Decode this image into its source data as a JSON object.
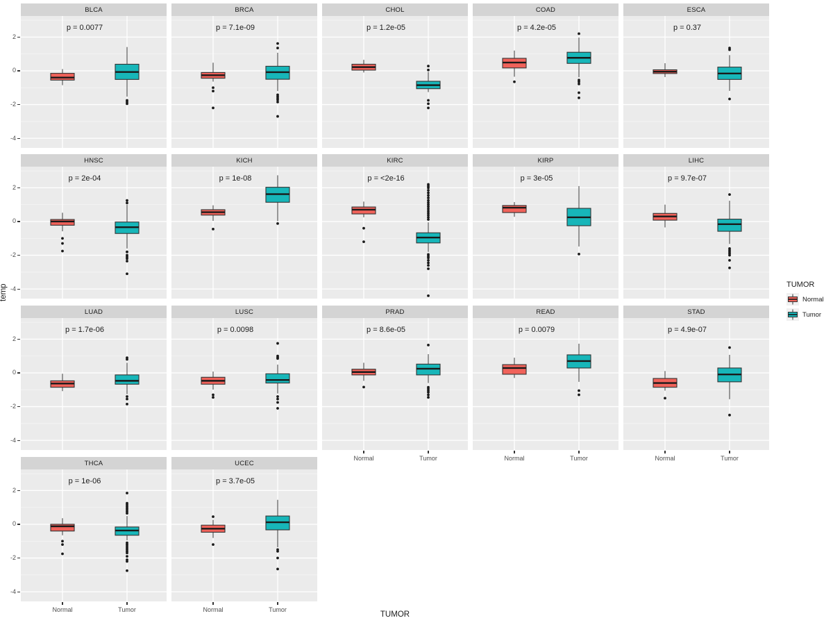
{
  "figure": {
    "panel_bg": "#ebebeb",
    "strip_bg": "#d4d4d4",
    "grid_major_color": "#ffffff",
    "grid_minor_color": "#f5f5f5",
    "box_stroke": "#333333",
    "whisker_color": "#4d4d4d",
    "outlier_color": "#1a1a1a",
    "tick_label_color": "#4d4d4d"
  },
  "legend": {
    "title": "TUMOR",
    "entries": [
      {
        "label": "Normal",
        "color": "#f0625a"
      },
      {
        "label": "Tumor",
        "color": "#17b6b9"
      }
    ]
  },
  "chart_data": {
    "type": "boxplot",
    "title": "",
    "xlabel": "TUMOR",
    "ylabel": "temp",
    "categories": [
      "Normal",
      "Tumor"
    ],
    "y_ticks": [
      2,
      0,
      -2,
      -4
    ],
    "ylim": [
      -4.57,
      3.25
    ],
    "grid": true,
    "legend_position": "right",
    "colors": {
      "Normal": "#f0625a",
      "Tumor": "#17b6b9"
    },
    "facets": [
      {
        "label": "BLCA",
        "p": "p = 0.0077",
        "normal": {
          "whislo": -0.85,
          "q1": -0.55,
          "med": -0.4,
          "q3": -0.15,
          "whishi": 0.1,
          "outliers": []
        },
        "tumor": {
          "whislo": -1.53,
          "q1": -0.51,
          "med": -0.07,
          "q3": 0.39,
          "whishi": 1.41,
          "outliers": [
            -1.75,
            -1.85,
            -1.95
          ]
        }
      },
      {
        "label": "BRCA",
        "p": "p = 7.1e-09",
        "normal": {
          "whislo": -0.64,
          "q1": -0.44,
          "med": -0.26,
          "q3": -0.1,
          "whishi": 0.48,
          "outliers": [
            -1.0,
            -1.2,
            -2.2
          ]
        },
        "tumor": {
          "whislo": -1.2,
          "q1": -0.5,
          "med": -0.08,
          "q3": 0.27,
          "whishi": 1.07,
          "outliers": [
            1.62,
            1.35,
            -1.42,
            -1.52,
            -1.62,
            -1.72,
            -1.85,
            -2.7
          ]
        }
      },
      {
        "label": "CHOL",
        "p": "p = 1.2e-05",
        "normal": {
          "whislo": -0.1,
          "q1": 0.04,
          "med": 0.22,
          "q3": 0.39,
          "whishi": 0.65,
          "outliers": []
        },
        "tumor": {
          "whislo": -1.26,
          "q1": -1.06,
          "med": -0.85,
          "q3": -0.62,
          "whishi": -0.07,
          "outliers": [
            0.28,
            0.05,
            -1.75,
            -1.95,
            -2.2
          ]
        }
      },
      {
        "label": "COAD",
        "p": "p = 4.2e-05",
        "normal": {
          "whislo": -0.35,
          "q1": 0.17,
          "med": 0.49,
          "q3": 0.74,
          "whishi": 1.2,
          "outliers": [
            -0.65
          ]
        },
        "tumor": {
          "whislo": -0.38,
          "q1": 0.44,
          "med": 0.77,
          "q3": 1.1,
          "whishi": 1.97,
          "outliers": [
            2.2,
            -0.55,
            -0.65,
            -0.78,
            -1.3,
            -1.6
          ]
        }
      },
      {
        "label": "ESCA",
        "p": "p = 0.37",
        "normal": {
          "whislo": -0.37,
          "q1": -0.16,
          "med": -0.05,
          "q3": 0.06,
          "whishi": 0.45,
          "outliers": []
        },
        "tumor": {
          "whislo": -1.19,
          "q1": -0.51,
          "med": -0.16,
          "q3": 0.22,
          "whishi": 0.93,
          "outliers": [
            1.35,
            1.25,
            -1.67
          ]
        }
      },
      {
        "label": "HNSC",
        "p": "p = 2e-04",
        "normal": {
          "whislo": -0.58,
          "q1": -0.22,
          "med": 0.0,
          "q3": 0.12,
          "whishi": 0.52,
          "outliers": [
            -1.0,
            -1.3,
            -1.75
          ]
        },
        "tumor": {
          "whislo": -1.6,
          "q1": -0.71,
          "med": -0.34,
          "q3": -0.03,
          "whishi": 1.0,
          "outliers": [
            1.25,
            1.1,
            -1.8,
            -2.0,
            -2.1,
            -2.2,
            -2.35,
            -3.1
          ]
        }
      },
      {
        "label": "KICH",
        "p": "p = 1e-08",
        "normal": {
          "whislo": 0.04,
          "q1": 0.38,
          "med": 0.55,
          "q3": 0.7,
          "whishi": 0.96,
          "outliers": [
            -0.45
          ]
        },
        "tumor": {
          "whislo": 0.02,
          "q1": 1.14,
          "med": 1.62,
          "q3": 2.03,
          "whishi": 2.74,
          "outliers": [
            -0.12
          ]
        }
      },
      {
        "label": "KIRC",
        "p": "p = <2e-16",
        "normal": {
          "whislo": 0.25,
          "q1": 0.45,
          "med": 0.7,
          "q3": 0.86,
          "whishi": 1.18,
          "outliers": [
            -0.4,
            -1.2
          ]
        },
        "tumor": {
          "whislo": -1.8,
          "q1": -1.27,
          "med": -0.95,
          "q3": -0.67,
          "whishi": -0.05,
          "outliers": [
            0.12,
            0.25,
            0.38,
            0.5,
            0.62,
            0.75,
            0.88,
            1.0,
            1.12,
            1.25,
            1.4,
            1.55,
            1.7,
            1.85,
            2.0,
            2.1,
            2.2,
            -1.95,
            -2.05,
            -2.15,
            -2.3,
            -2.45,
            -2.6,
            -2.8,
            -4.4
          ]
        }
      },
      {
        "label": "KIRP",
        "p": "p = 3e-05",
        "normal": {
          "whislo": 0.28,
          "q1": 0.53,
          "med": 0.82,
          "q3": 0.95,
          "whishi": 1.15,
          "outliers": []
        },
        "tumor": {
          "whislo": -1.48,
          "q1": -0.25,
          "med": 0.25,
          "q3": 0.78,
          "whishi": 2.1,
          "outliers": [
            -1.93
          ]
        }
      },
      {
        "label": "LIHC",
        "p": "p = 9.7e-07",
        "normal": {
          "whislo": -0.35,
          "q1": 0.08,
          "med": 0.3,
          "q3": 0.48,
          "whishi": 1.0,
          "outliers": []
        },
        "tumor": {
          "whislo": -1.33,
          "q1": -0.58,
          "med": -0.16,
          "q3": 0.14,
          "whishi": 1.23,
          "outliers": [
            1.6,
            -1.6,
            -1.7,
            -1.8,
            -1.9,
            -2.0,
            -2.3,
            -2.75
          ]
        }
      },
      {
        "label": "LUAD",
        "p": "p = 1.7e-06",
        "normal": {
          "whislo": -1.08,
          "q1": -0.85,
          "med": -0.63,
          "q3": -0.47,
          "whishi": -0.05,
          "outliers": []
        },
        "tumor": {
          "whislo": -1.26,
          "q1": -0.67,
          "med": -0.47,
          "q3": -0.12,
          "whishi": 0.6,
          "outliers": [
            0.9,
            0.8,
            -1.4,
            -1.55,
            -1.85
          ]
        }
      },
      {
        "label": "LUSC",
        "p": "p = 0.0098",
        "normal": {
          "whislo": -0.99,
          "q1": -0.67,
          "med": -0.47,
          "q3": -0.26,
          "whishi": 0.08,
          "outliers": [
            -1.3,
            -1.45
          ]
        },
        "tumor": {
          "whislo": -1.22,
          "q1": -0.6,
          "med": -0.42,
          "q3": -0.05,
          "whishi": 0.49,
          "outliers": [
            1.75,
            1.0,
            0.92,
            0.85,
            -1.4,
            -1.55,
            -1.75,
            -2.1
          ]
        }
      },
      {
        "label": "PRAD",
        "p": "p = 8.6e-05",
        "normal": {
          "whislo": -0.47,
          "q1": -0.12,
          "med": 0.05,
          "q3": 0.22,
          "whishi": 0.6,
          "outliers": [
            -0.84
          ]
        },
        "tumor": {
          "whislo": -0.6,
          "q1": -0.12,
          "med": 0.25,
          "q3": 0.52,
          "whishi": 1.11,
          "outliers": [
            1.65,
            -0.85,
            -0.95,
            -1.05,
            -1.15,
            -1.3,
            -1.45
          ]
        }
      },
      {
        "label": "READ",
        "p": "p = 0.0079",
        "normal": {
          "whislo": -0.3,
          "q1": -0.08,
          "med": 0.29,
          "q3": 0.49,
          "whishi": 0.9,
          "outliers": []
        },
        "tumor": {
          "whislo": -0.53,
          "q1": 0.29,
          "med": 0.7,
          "q3": 1.07,
          "whishi": 1.73,
          "outliers": [
            -1.05,
            -1.3
          ]
        }
      },
      {
        "label": "STAD",
        "p": "p = 4.9e-07",
        "normal": {
          "whislo": -1.05,
          "q1": -0.85,
          "med": -0.6,
          "q3": -0.33,
          "whishi": 0.11,
          "outliers": [
            -1.5
          ]
        },
        "tumor": {
          "whislo": -1.56,
          "q1": -0.53,
          "med": -0.09,
          "q3": 0.29,
          "whishi": 1.07,
          "outliers": [
            1.5,
            -2.5
          ]
        }
      },
      {
        "label": "THCA",
        "p": "p = 1e-06",
        "normal": {
          "whislo": -0.65,
          "q1": -0.4,
          "med": -0.12,
          "q3": 0.0,
          "whishi": 0.36,
          "outliers": [
            -1.0,
            -1.2,
            -1.75
          ]
        },
        "tumor": {
          "whislo": -0.95,
          "q1": -0.65,
          "med": -0.37,
          "q3": -0.16,
          "whishi": 0.49,
          "outliers": [
            1.85,
            1.25,
            1.15,
            1.05,
            0.95,
            0.85,
            0.75,
            0.65,
            -1.1,
            -1.2,
            -1.3,
            -1.4,
            -1.5,
            -1.6,
            -1.7,
            -1.9,
            -2.1,
            -2.2,
            -2.75
          ]
        }
      },
      {
        "label": "UCEC",
        "p": "p = 3.7e-05",
        "normal": {
          "whislo": -0.81,
          "q1": -0.47,
          "med": -0.26,
          "q3": -0.05,
          "whishi": 0.26,
          "outliers": [
            0.45,
            -1.2
          ]
        },
        "tumor": {
          "whislo": -1.36,
          "q1": -0.33,
          "med": 0.12,
          "q3": 0.49,
          "whishi": 1.45,
          "outliers": [
            -1.5,
            -1.6,
            -2.0,
            -2.65
          ]
        }
      }
    ]
  }
}
